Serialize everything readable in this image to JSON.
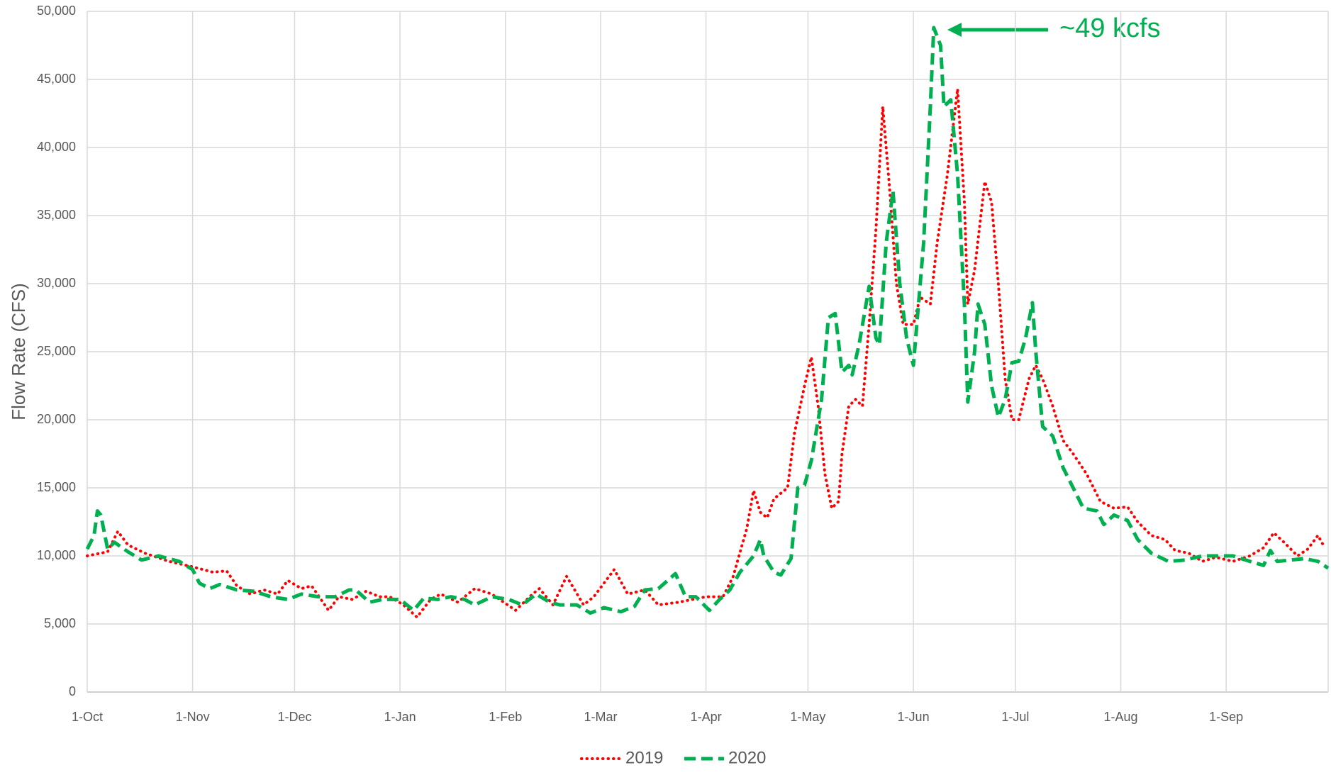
{
  "chart_data": {
    "type": "line",
    "ylabel": "Flow Rate (CFS)",
    "annotation": "~49 kcfs",
    "xlim": [
      0,
      365
    ],
    "xticks": [
      {
        "value": 0,
        "label": "1-Oct"
      },
      {
        "value": 31,
        "label": "1-Nov"
      },
      {
        "value": 61,
        "label": "1-Dec"
      },
      {
        "value": 92,
        "label": "1-Jan"
      },
      {
        "value": 123,
        "label": "1-Feb"
      },
      {
        "value": 151,
        "label": "1-Mar"
      },
      {
        "value": 182,
        "label": "1-Apr"
      },
      {
        "value": 212,
        "label": "1-May"
      },
      {
        "value": 243,
        "label": "1-Jun"
      },
      {
        "value": 273,
        "label": "1-Jul"
      },
      {
        "value": 304,
        "label": "1-Aug"
      },
      {
        "value": 335,
        "label": "1-Sep"
      }
    ],
    "ylim": [
      0,
      50000
    ],
    "yticks": [
      0,
      {
        "value": 5000,
        "label": "5,000"
      },
      {
        "value": 10000,
        "label": "10,000"
      },
      {
        "value": 15000,
        "label": "15,000"
      },
      {
        "value": 20000,
        "label": "20,000"
      },
      {
        "value": 25000,
        "label": "25,000"
      },
      {
        "value": 30000,
        "label": "30,000"
      },
      {
        "value": 35000,
        "label": "35,000"
      },
      {
        "value": 40000,
        "label": "40,000"
      },
      {
        "value": 45000,
        "label": "45,000"
      },
      {
        "value": 50000,
        "label": "50,000"
      }
    ],
    "grid": true,
    "legend": "bottom",
    "series": [
      {
        "name": "2019",
        "color": "#ff0000",
        "style": "dotted",
        "x": [
          0,
          6,
          9,
          12,
          17,
          24,
          31,
          37,
          41,
          44,
          48,
          52,
          56,
          59,
          63,
          66,
          71,
          74,
          78,
          82,
          86,
          89,
          93,
          97,
          101,
          104,
          109,
          114,
          119,
          126,
          131,
          133,
          137,
          141,
          146,
          149,
          155,
          159,
          164,
          168,
          174,
          182,
          187,
          190,
          194,
          196,
          198,
          200,
          202,
          206,
          208,
          211,
          213,
          215,
          217,
          219,
          221,
          222,
          224,
          226,
          228,
          230,
          232,
          234,
          236,
          238,
          240,
          243,
          245,
          248,
          250,
          253,
          256,
          258,
          259,
          261,
          264,
          266,
          268,
          270,
          272,
          274,
          277,
          279,
          281,
          284,
          287,
          290,
          294,
          298,
          302,
          306,
          309,
          313,
          317,
          320,
          324,
          328,
          332,
          337,
          342,
          346,
          349,
          352,
          356,
          359,
          362,
          364
        ],
        "values": [
          10000,
          10300,
          11800,
          10800,
          10200,
          9600,
          9200,
          8800,
          8900,
          7800,
          7200,
          7500,
          7200,
          8200,
          7600,
          7800,
          6000,
          7000,
          6800,
          7400,
          7000,
          7000,
          6400,
          5500,
          6800,
          7200,
          6600,
          7600,
          7200,
          6000,
          7200,
          7600,
          6400,
          8500,
          6400,
          7000,
          9000,
          7200,
          7500,
          6400,
          6600,
          7000,
          7000,
          8500,
          12000,
          14800,
          13200,
          12800,
          14200,
          15000,
          19000,
          22500,
          24600,
          21000,
          16000,
          13500,
          14000,
          17500,
          21000,
          21500,
          21000,
          27000,
          34000,
          43000,
          37000,
          30000,
          27000,
          27000,
          29000,
          28500,
          33000,
          38000,
          44300,
          36000,
          28500,
          31000,
          37500,
          36000,
          30000,
          23000,
          20000,
          20000,
          23000,
          24000,
          23000,
          21000,
          18500,
          17500,
          16000,
          14000,
          13500,
          13600,
          12500,
          11500,
          11200,
          10400,
          10200,
          9600,
          9900,
          9600,
          10000,
          10600,
          11700,
          11000,
          10000,
          10500,
          11500,
          10600
        ]
      },
      {
        "name": "2020",
        "color": "#00b050",
        "style": "dashed",
        "x": [
          0,
          2,
          3,
          4,
          6,
          8,
          12,
          16,
          21,
          27,
          31,
          33,
          36,
          39,
          44,
          49,
          54,
          59,
          63,
          68,
          73,
          77,
          79,
          83,
          87,
          92,
          96,
          99,
          103,
          107,
          111,
          114,
          119,
          124,
          128,
          132,
          136,
          139,
          144,
          148,
          152,
          157,
          161,
          164,
          168,
          173,
          176,
          179,
          183,
          186,
          189,
          192,
          196,
          198,
          199,
          202,
          204,
          207,
          209,
          211,
          213,
          216,
          218,
          220,
          222,
          224,
          225,
          227,
          230,
          232,
          233,
          235,
          237,
          239,
          241,
          243,
          244,
          246,
          248,
          249,
          251,
          252,
          254,
          256,
          258,
          259,
          261,
          262,
          264,
          266,
          268,
          270,
          272,
          274,
          276,
          278,
          279,
          281,
          284,
          287,
          290,
          293,
          297,
          299,
          302,
          306,
          309,
          313,
          318,
          323,
          328,
          332,
          337,
          342,
          346,
          348,
          350,
          354,
          358,
          362,
          365
        ],
        "values": [
          10500,
          11500,
          13300,
          13000,
          10500,
          11000,
          10300,
          9700,
          10000,
          9600,
          9000,
          8000,
          7600,
          7900,
          7500,
          7400,
          7000,
          6800,
          7200,
          7000,
          7000,
          7500,
          7500,
          6600,
          6800,
          6800,
          6000,
          6900,
          6800,
          7000,
          6800,
          6400,
          7000,
          6800,
          6400,
          7200,
          6600,
          6400,
          6400,
          5800,
          6200,
          5900,
          6300,
          7500,
          7600,
          8700,
          7000,
          7000,
          6000,
          6800,
          7500,
          8800,
          10000,
          11200,
          10000,
          8800,
          8600,
          9800,
          15000,
          15200,
          17000,
          21500,
          27500,
          27800,
          23500,
          24000,
          23300,
          25500,
          29800,
          26000,
          25500,
          33000,
          36800,
          30000,
          26000,
          24000,
          27000,
          33000,
          43000,
          48800,
          47500,
          43000,
          43500,
          38000,
          28500,
          21300,
          25000,
          28500,
          27000,
          22500,
          20200,
          21500,
          24200,
          24300,
          26000,
          28600,
          25000,
          19500,
          18800,
          16500,
          15000,
          13500,
          13300,
          12300,
          13000,
          12600,
          11200,
          10200,
          9600,
          9700,
          10000,
          10000,
          10000,
          9600,
          9300,
          10400,
          9600,
          9700,
          9800,
          9600,
          9100
        ]
      }
    ]
  }
}
